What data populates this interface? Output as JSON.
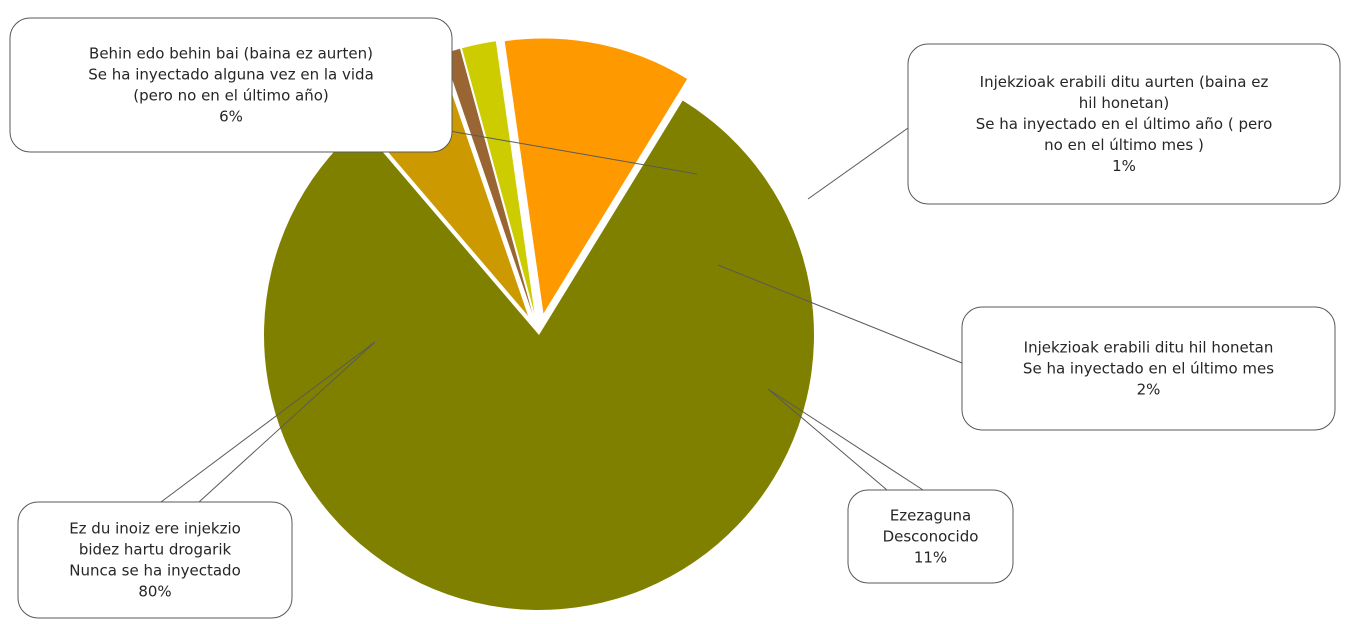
{
  "chart_data": {
    "type": "pie",
    "title": "",
    "slices": [
      {
        "name": "Nunca se ha inyectado",
        "value": 80,
        "color": "#808000",
        "label_lines": [
          "Ez du inoiz ere injekzio",
          "bidez hartu drogarik",
          "Nunca se ha inyectado",
          "80%"
        ]
      },
      {
        "name": "Se ha inyectado alguna vez en la vida (pero no en el último año)",
        "value": 6,
        "color": "#CC9900",
        "label_lines": [
          "Behin edo behin bai (baina ez aurten)",
          "Se ha inyectado alguna vez en la vida",
          "(pero  no en el último año)",
          "6%"
        ]
      },
      {
        "name": "Se ha inyectado en el último año (pero no en el último mes)",
        "value": 1,
        "color": "#996633",
        "label_lines": [
          "Injekzioak erabili ditu aurten (baina ez",
          "hil honetan)",
          "Se ha inyectado en el último año ( pero",
          "no en el último mes )",
          "1%"
        ]
      },
      {
        "name": "Se ha inyectado en el último mes",
        "value": 2,
        "color": "#CCCC00",
        "label_lines": [
          "Injekzioak erabili ditu hil honetan",
          "Se ha inyectado en el último mes",
          "2%"
        ]
      },
      {
        "name": "Desconocido",
        "value": 11,
        "color": "#FF9900",
        "label_lines": [
          "Ezezaguna",
          "Desconocido",
          "11%"
        ]
      }
    ]
  }
}
